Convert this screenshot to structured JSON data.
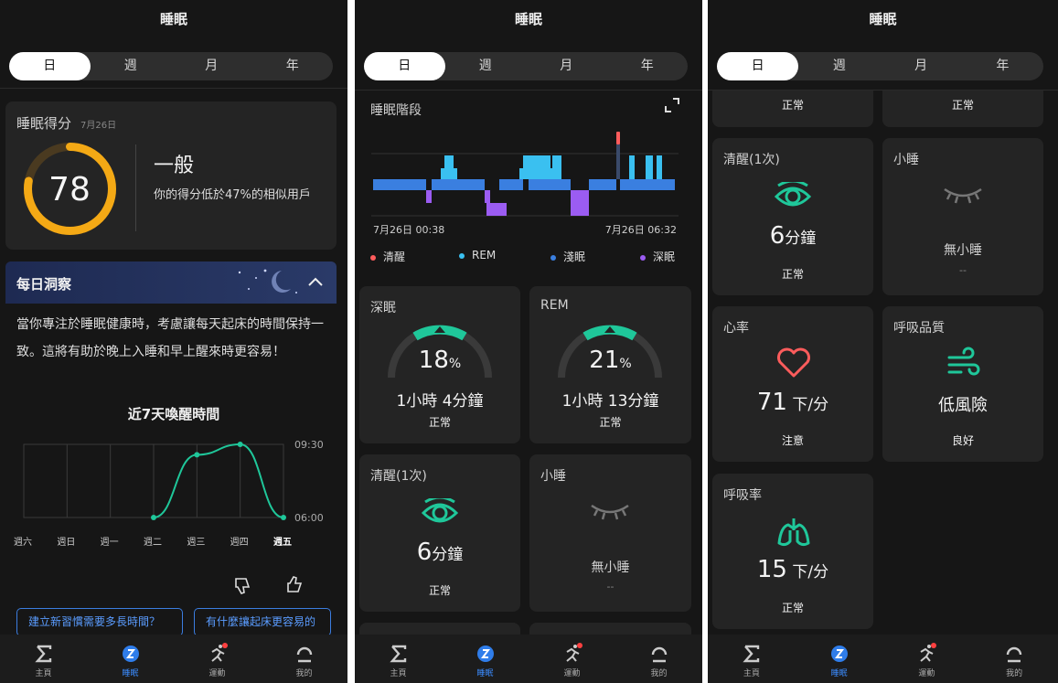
{
  "colors": {
    "accent": "#1fc79a",
    "blue": "#3b8cff",
    "gold": "#f4a915",
    "awake": "#ff5c5c",
    "rem": "#3ac0f0",
    "light": "#3a7fe0",
    "deep": "#9b5cf2"
  },
  "panel1": {
    "title": "睡眠",
    "tabs": [
      "日",
      "週",
      "月",
      "年"
    ],
    "score_label": "睡眠得分",
    "score_date": "7月26日",
    "score": "78",
    "score_word": "一般",
    "score_desc": "你的得分低於47%的相似用戶",
    "insight_title": "每日洞察",
    "insight_text": "當你專注於睡眠健康時，考慮讓每天起床的時間保持一致。這將有助於晚上入睡和早上醒來時更容易！",
    "chart_title": "近7天喚醒時間",
    "links": [
      "建立新習慣需要多長時間？",
      "有什麼讓起床更容易的"
    ]
  },
  "chart_data": {
    "type": "line",
    "title": "近7天喚醒時間",
    "categories": [
      "週六",
      "週日",
      "週一",
      "週二",
      "週三",
      "週四",
      "週五"
    ],
    "y_ticks": [
      "09:30",
      "06:00"
    ],
    "ylim": [
      "06:00",
      "09:30"
    ],
    "series": [
      {
        "values": [
          null,
          null,
          null,
          "06:00",
          "09:00",
          "09:30",
          "06:00"
        ]
      }
    ]
  },
  "panel2": {
    "title": "睡眠",
    "tabs": [
      "日",
      "週",
      "月",
      "年"
    ],
    "stages_title": "睡眠階段",
    "start_time": "7月26日 00:38",
    "end_time": "7月26日 06:32",
    "legend": [
      "清醒",
      "REM",
      "淺眠",
      "深眠"
    ],
    "deep_title": "深眠",
    "deep_pct": "18",
    "deep_dur": "1小時 4分鐘",
    "deep_status": "正常",
    "rem_title": "REM",
    "rem_pct": "21",
    "rem_dur": "1小時 13分鐘",
    "rem_status": "正常",
    "awake_title": "清醒(1次)",
    "awake_num": "6",
    "awake_unit": "分鐘",
    "awake_status": "正常",
    "nap_title": "小睡",
    "nap_val": "無小睡",
    "nap_dash": "--",
    "pct": "%"
  },
  "panel3": {
    "title": "睡眠",
    "tabs": [
      "日",
      "週",
      "月",
      "年"
    ],
    "top_status_left": "正常",
    "top_status_right": "正常",
    "awake_title": "清醒(1次)",
    "awake_num": "6",
    "awake_unit": "分鐘",
    "awake_status": "正常",
    "nap_title": "小睡",
    "nap_val": "無小睡",
    "nap_dash": "--",
    "hr_title": "心率",
    "hr_num": "71",
    "hr_unit": "下/分",
    "hr_status": "注意",
    "bq_title": "呼吸品質",
    "bq_val": "低風險",
    "bq_status": "良好",
    "rr_title": "呼吸率",
    "rr_num": "15",
    "rr_unit": "下/分",
    "rr_status": "正常"
  },
  "nav": [
    "主頁",
    "睡眠",
    "運動",
    "我的"
  ]
}
